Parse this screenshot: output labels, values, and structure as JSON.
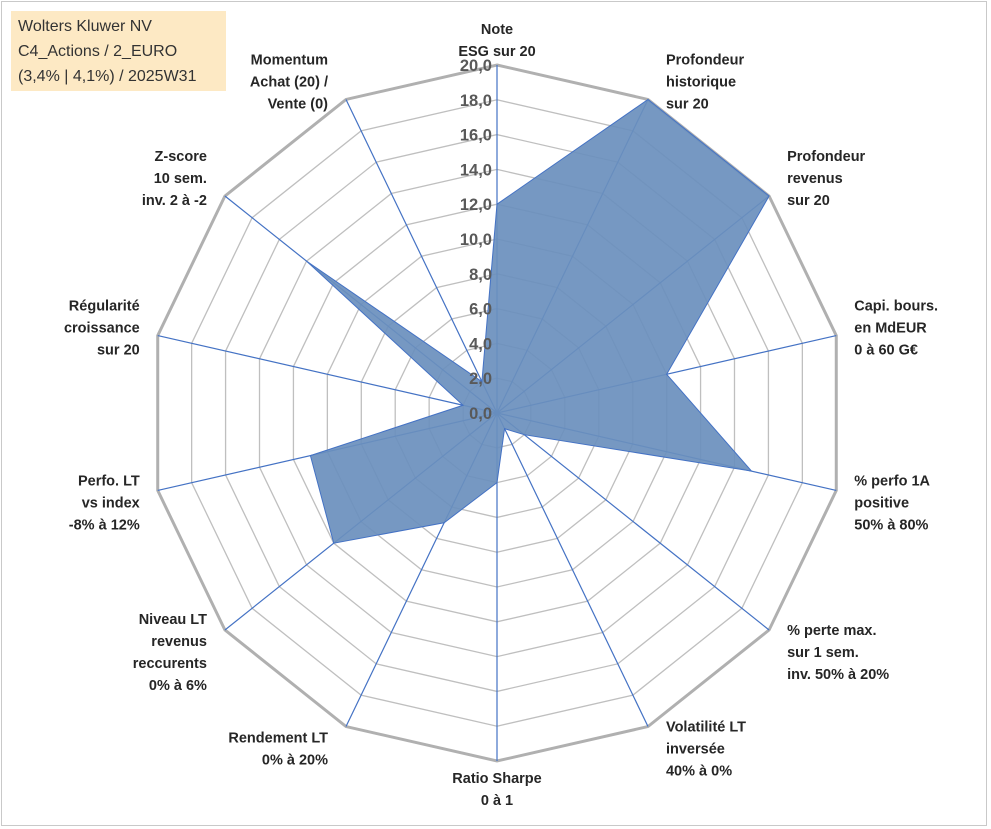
{
  "info": {
    "line1": "Wolters Kluwer NV",
    "line2": "C4_Actions / 2_EURO",
    "line3": "(3,4% | 4,1%) / 2025W31"
  },
  "chart_data": {
    "type": "radar",
    "title": "",
    "rmin": 0,
    "rmax": 20,
    "tick_labels": [
      "0,0",
      "2,0",
      "4,0",
      "6,0",
      "8,0",
      "10,0",
      "12,0",
      "14,0",
      "16,0",
      "18,0",
      "20,0"
    ],
    "axes": [
      {
        "lines": [
          "Note",
          "ESG sur 20"
        ],
        "value": 12
      },
      {
        "lines": [
          "Profondeur",
          "historique",
          "sur 20"
        ],
        "value": 20
      },
      {
        "lines": [
          "Profondeur",
          "revenus",
          "sur 20"
        ],
        "value": 20
      },
      {
        "lines": [
          "Capi. bours.",
          "en MdEUR",
          "0 à 60 G€"
        ],
        "value": 10
      },
      {
        "lines": [
          "% perfo 1A",
          "positive",
          "50% à 80%"
        ],
        "value": 15
      },
      {
        "lines": [
          "% perte max.",
          "sur 1 sem.",
          "inv. 50% à 20%"
        ],
        "value": 2
      },
      {
        "lines": [
          "Volatilité LT",
          "inversée",
          "40% à 0%"
        ],
        "value": 1
      },
      {
        "lines": [
          "Ratio Sharpe",
          "0 à 1"
        ],
        "value": 4
      },
      {
        "lines": [
          "Rendement LT",
          "0% à 20%"
        ],
        "value": 7
      },
      {
        "lines": [
          "Niveau LT",
          "revenus",
          "reccurents",
          "0% à 6%"
        ],
        "value": 12
      },
      {
        "lines": [
          "Perfo. LT",
          "vs index",
          "-8% à 12%"
        ],
        "value": 11
      },
      {
        "lines": [
          "Régularité",
          "croissance",
          "sur 20"
        ],
        "value": 2
      },
      {
        "lines": [
          "Z-score",
          "10 sem.",
          "inv. 2 à -2"
        ],
        "value": 14
      },
      {
        "lines": [
          "Momentum",
          "Achat (20) /",
          "Vente (0)"
        ],
        "value": 2
      }
    ],
    "colors": {
      "fill": "#6a8fbd",
      "stroke": "#4472c4",
      "grid": "#bfbfbf",
      "spoke": "#4472c4"
    }
  }
}
